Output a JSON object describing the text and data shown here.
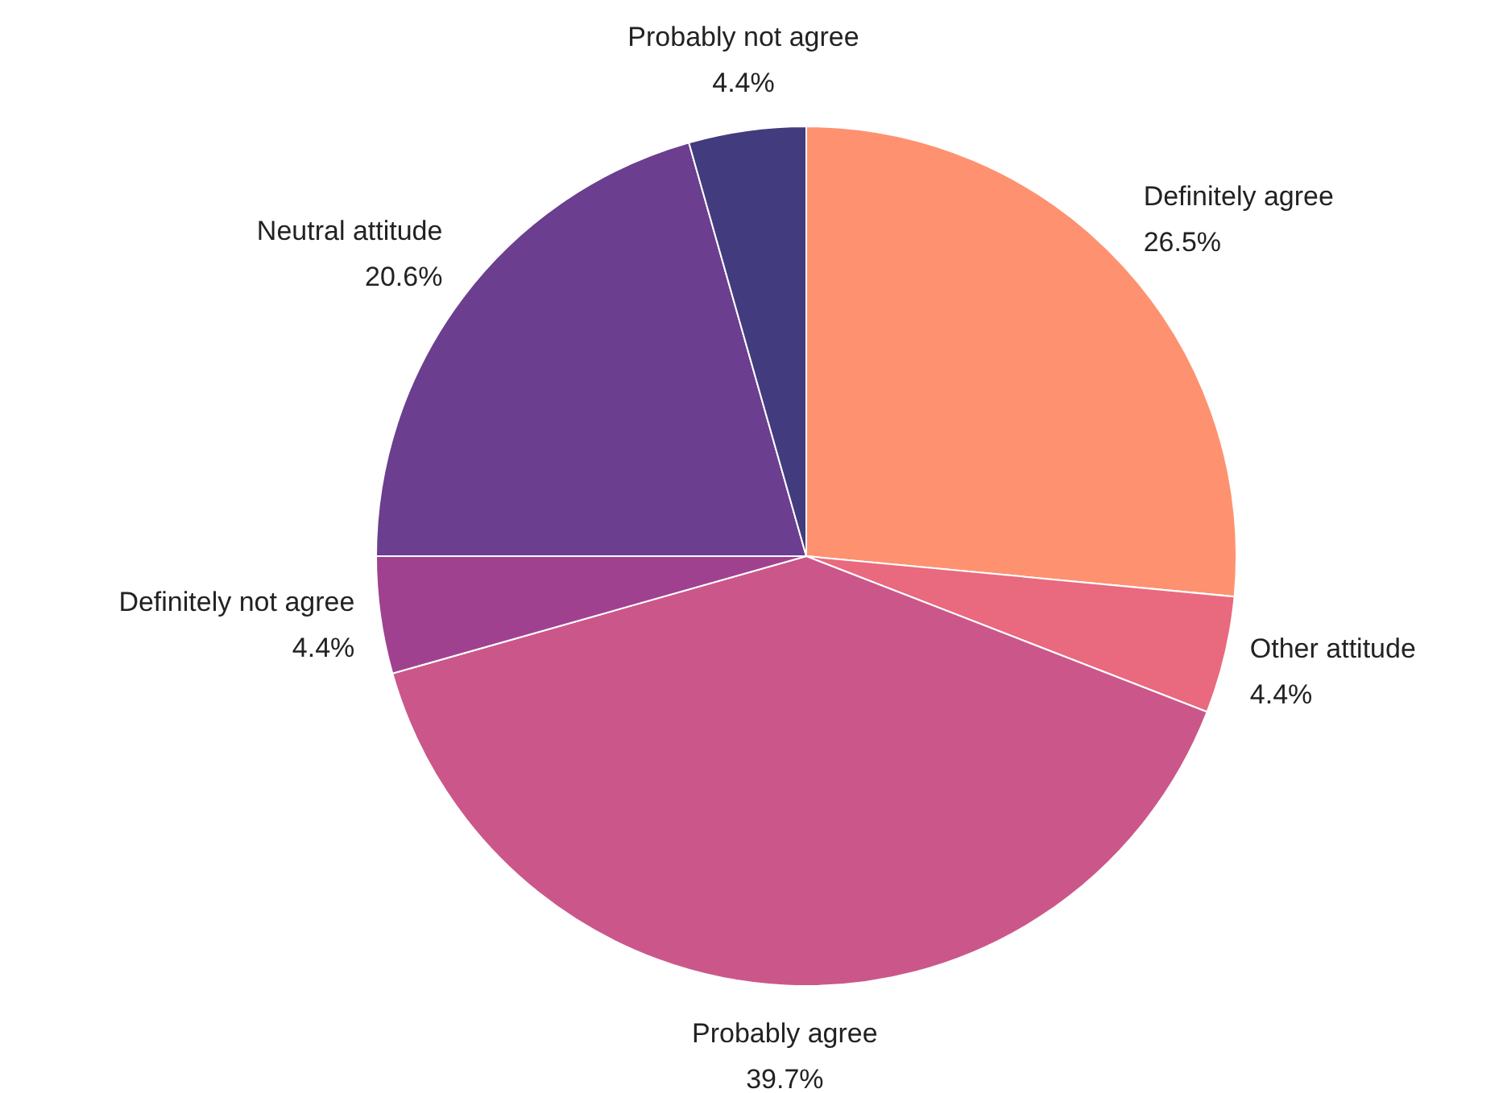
{
  "chart_data": {
    "type": "pie",
    "categories": [
      "Definitely agree",
      "Other attitude",
      "Probably agree",
      "Definitely not agree",
      "Neutral attitude",
      "Probably not agree"
    ],
    "values": [
      26.5,
      4.4,
      39.7,
      4.4,
      20.6,
      4.4
    ],
    "value_labels": [
      "26.5%",
      "4.4%",
      "39.7%",
      "4.4%",
      "20.6%",
      "4.4%"
    ],
    "colors": [
      "#fe9270",
      "#e9697e",
      "#cb578a",
      "#a0418f",
      "#6b3e8f",
      "#423b7e"
    ]
  }
}
